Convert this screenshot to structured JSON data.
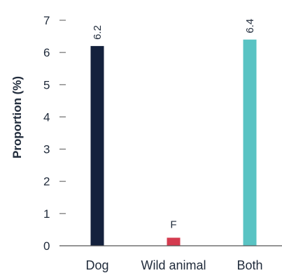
{
  "chart_data": {
    "type": "bar",
    "title": "",
    "xlabel": "",
    "ylabel": "Proportion (%)",
    "ylim": [
      0,
      7
    ],
    "yticks": [
      0,
      1,
      2,
      3,
      4,
      5,
      6,
      7
    ],
    "grid": false,
    "categories": [
      "Dog",
      "Wild animal",
      "Both"
    ],
    "values": [
      6.2,
      0.25,
      6.4
    ],
    "data_labels": [
      "6.2",
      "F",
      "6.4"
    ],
    "colors": [
      "#14213d",
      "#d43b4f",
      "#59c3c3"
    ]
  }
}
